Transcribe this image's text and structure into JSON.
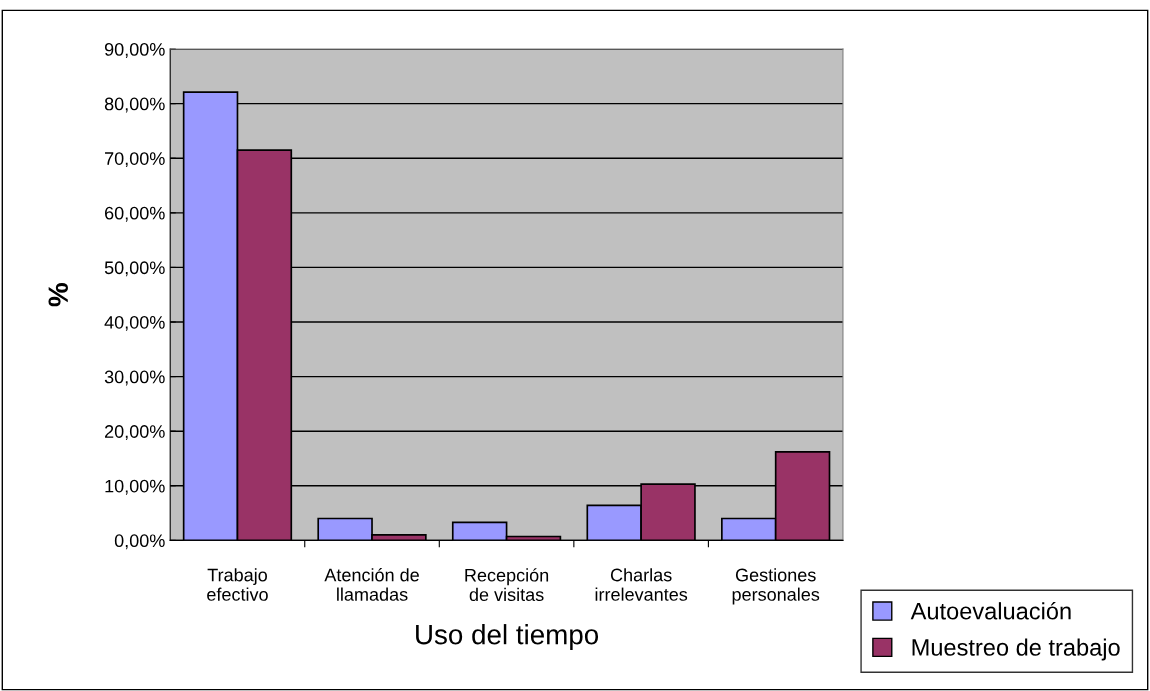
{
  "chart_data": {
    "type": "bar",
    "xlabel": "Uso del tiempo",
    "ylabel": "%",
    "categories": [
      "Trabajo\nefectivo",
      "Atención de\nllamadas",
      "Recepción\nde visitas",
      "Charlas\nirrelevantes",
      "Gestiones\npersonales"
    ],
    "series": [
      {
        "name": "Autoevaluación",
        "color": "#9999ff",
        "values": [
          82.1,
          4.0,
          3.3,
          6.4,
          4.0
        ]
      },
      {
        "name": "Muestreo de trabajo",
        "color": "#993366",
        "values": [
          71.5,
          1.0,
          0.7,
          10.3,
          16.2
        ]
      }
    ],
    "ylim": [
      0,
      90
    ],
    "yticks": [
      {
        "value": 0,
        "label": "0,00%"
      },
      {
        "value": 10,
        "label": "10,00%"
      },
      {
        "value": 20,
        "label": "20,00%"
      },
      {
        "value": 30,
        "label": "30,00%"
      },
      {
        "value": 40,
        "label": "40,00%"
      },
      {
        "value": 50,
        "label": "50,00%"
      },
      {
        "value": 60,
        "label": "60,00%"
      },
      {
        "value": 70,
        "label": "70,00%"
      },
      {
        "value": 80,
        "label": "80,00%"
      },
      {
        "value": 90,
        "label": "90,00%"
      }
    ],
    "grid": "y",
    "legend": "bottom right"
  }
}
